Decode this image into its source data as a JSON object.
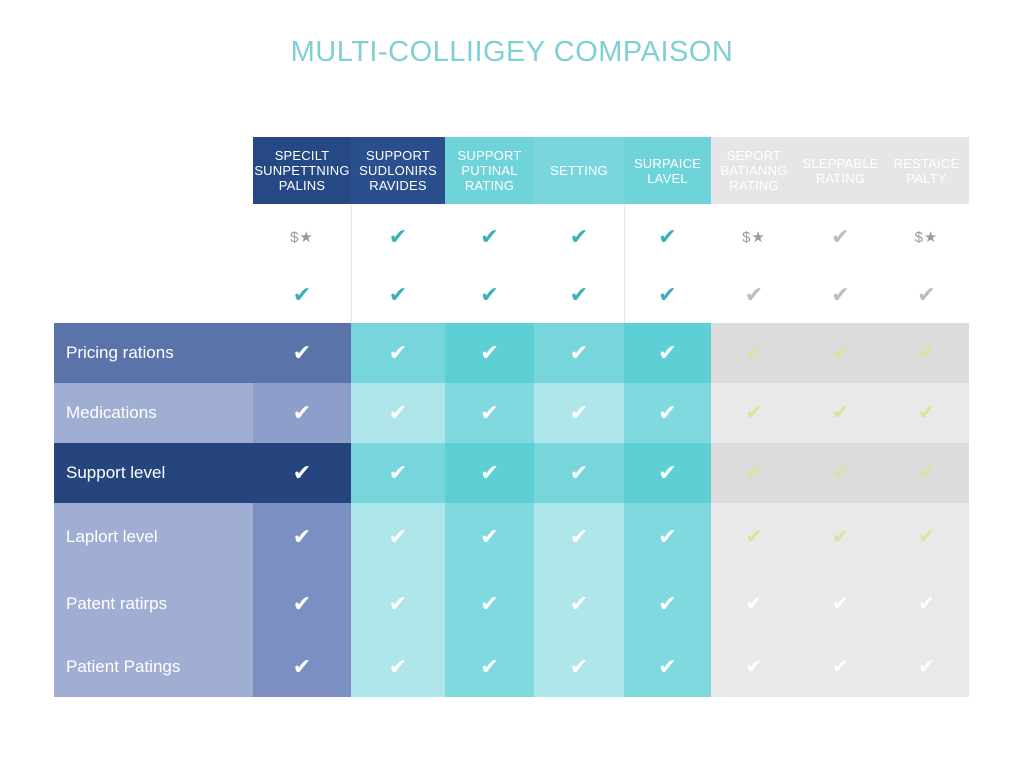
{
  "chart_data": {
    "type": "table",
    "title": "MULTI-COLLIIGEY COMPAISON",
    "columns": [
      {
        "label": "SPECILT SUNPETTNING PALINS"
      },
      {
        "label": "SUPPORT SUDLONIRS RAVIDES"
      },
      {
        "label": "SUPPORT PUTINAL RATING"
      },
      {
        "label": "SETTING"
      },
      {
        "label": "SURPAICE LAVEL"
      },
      {
        "label": "SEPORT BATIANNG RATING"
      },
      {
        "label": "SLEPPABLE RATING"
      },
      {
        "label": "RESTAICE PALTY"
      }
    ],
    "top_rows": [
      {
        "label": "",
        "cells": [
          "$★",
          "✔",
          "✔",
          "✔",
          "✔",
          "$★",
          "✔",
          "$★"
        ]
      },
      {
        "label": "",
        "cells": [
          "✔",
          "✔",
          "✔",
          "✔",
          "✔",
          "✔",
          "✔",
          "✔"
        ]
      }
    ],
    "rows": [
      {
        "label": "Pricing rations",
        "cells": [
          "✔",
          "✔",
          "✔",
          "✔",
          "✔",
          "✔",
          "✔",
          "✔"
        ]
      },
      {
        "label": "Medications",
        "cells": [
          "✔",
          "✔",
          "✔",
          "✔",
          "✔",
          "✔",
          "✔",
          "✔"
        ]
      },
      {
        "label": "Support level",
        "cells": [
          "✔",
          "✔",
          "✔",
          "✔",
          "✔",
          "✔",
          "✔",
          "✔"
        ]
      },
      {
        "label": "Laplort level",
        "cells": [
          "✔",
          "✔",
          "✔",
          "✔",
          "✔",
          "✔",
          "✔",
          "✔"
        ]
      },
      {
        "label": "Patent ratirps",
        "cells": [
          "✔",
          "✔",
          "✔",
          "✔",
          "✔",
          "✔",
          "✔",
          "✔"
        ]
      },
      {
        "label": "Patient Patings",
        "cells": [
          "✔",
          "✔",
          "✔",
          "✔",
          "✔",
          "✔",
          "✔",
          "✔"
        ]
      }
    ]
  },
  "colors": {
    "title": "#7fd0d6",
    "navy": "#2d4a84",
    "slate": "#5a73a8",
    "periwinkle": "#a3b1d5",
    "teal": "#76d6dc",
    "aqua": "#b0e8ec",
    "gray": "#e3e3e3",
    "check_teal": "#3ab0b7",
    "check_olive": "#d9e39a"
  }
}
